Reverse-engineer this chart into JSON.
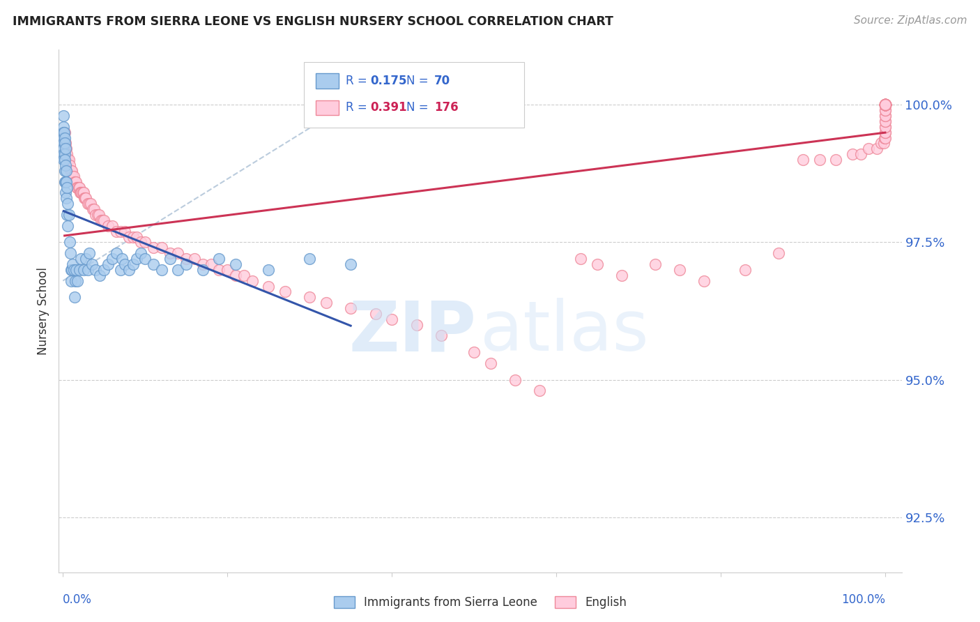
{
  "title": "IMMIGRANTS FROM SIERRA LEONE VS ENGLISH NURSERY SCHOOL CORRELATION CHART",
  "source": "Source: ZipAtlas.com",
  "ylabel": "Nursery School",
  "yticks": [
    92.5,
    95.0,
    97.5,
    100.0
  ],
  "ytick_labels": [
    "92.5%",
    "95.0%",
    "97.5%",
    "100.0%"
  ],
  "ymin": 91.5,
  "ymax": 101.0,
  "xmin": -0.005,
  "xmax": 1.02,
  "legend_blue_r": "0.175",
  "legend_blue_n": "70",
  "legend_pink_r": "0.391",
  "legend_pink_n": "176",
  "blue_edge": "#6699cc",
  "blue_face": "#aaccee",
  "pink_edge": "#ee8899",
  "pink_face": "#ffccdd",
  "trendline_blue": "#3355aa",
  "trendline_pink": "#cc3355",
  "trendline_dashed": "#bbccdd",
  "background": "#ffffff",
  "grid_color": "#cccccc",
  "axis_label_color": "#3366cc",
  "title_color": "#222222",
  "blue_scatter_x": [
    0.0008,
    0.0009,
    0.001,
    0.001,
    0.001,
    0.001,
    0.001,
    0.001,
    0.0015,
    0.002,
    0.002,
    0.002,
    0.002,
    0.002,
    0.002,
    0.003,
    0.003,
    0.003,
    0.003,
    0.004,
    0.004,
    0.004,
    0.005,
    0.005,
    0.006,
    0.006,
    0.007,
    0.008,
    0.009,
    0.01,
    0.01,
    0.011,
    0.012,
    0.013,
    0.014,
    0.015,
    0.016,
    0.018,
    0.02,
    0.022,
    0.025,
    0.028,
    0.03,
    0.032,
    0.035,
    0.04,
    0.045,
    0.05,
    0.055,
    0.06,
    0.065,
    0.07,
    0.072,
    0.075,
    0.08,
    0.085,
    0.09,
    0.095,
    0.1,
    0.11,
    0.12,
    0.13,
    0.14,
    0.15,
    0.17,
    0.19,
    0.21,
    0.25,
    0.3,
    0.35
  ],
  "blue_scatter_y": [
    99.8,
    99.6,
    99.5,
    99.4,
    99.3,
    99.2,
    99.1,
    99.0,
    99.5,
    99.4,
    99.3,
    99.1,
    99.0,
    98.8,
    98.6,
    99.2,
    98.9,
    98.6,
    98.4,
    98.8,
    98.6,
    98.3,
    98.5,
    98.0,
    98.2,
    97.8,
    98.0,
    97.5,
    97.3,
    97.0,
    96.8,
    97.0,
    97.1,
    97.0,
    96.5,
    96.8,
    97.0,
    96.8,
    97.0,
    97.2,
    97.0,
    97.2,
    97.0,
    97.3,
    97.1,
    97.0,
    96.9,
    97.0,
    97.1,
    97.2,
    97.3,
    97.0,
    97.2,
    97.1,
    97.0,
    97.1,
    97.2,
    97.3,
    97.2,
    97.1,
    97.0,
    97.2,
    97.0,
    97.1,
    97.0,
    97.2,
    97.1,
    97.0,
    97.2,
    97.1
  ],
  "pink_scatter_x": [
    0.002,
    0.003,
    0.004,
    0.005,
    0.006,
    0.007,
    0.008,
    0.009,
    0.01,
    0.011,
    0.012,
    0.013,
    0.014,
    0.015,
    0.016,
    0.017,
    0.018,
    0.019,
    0.02,
    0.021,
    0.022,
    0.023,
    0.024,
    0.025,
    0.026,
    0.027,
    0.028,
    0.03,
    0.032,
    0.034,
    0.036,
    0.038,
    0.04,
    0.042,
    0.044,
    0.046,
    0.048,
    0.05,
    0.055,
    0.06,
    0.065,
    0.07,
    0.075,
    0.08,
    0.085,
    0.09,
    0.095,
    0.1,
    0.11,
    0.12,
    0.13,
    0.14,
    0.15,
    0.16,
    0.17,
    0.18,
    0.19,
    0.2,
    0.21,
    0.22,
    0.23,
    0.25,
    0.27,
    0.3,
    0.32,
    0.35,
    0.38,
    0.4,
    0.43,
    0.46,
    0.5,
    0.52,
    0.55,
    0.58,
    0.63,
    0.65,
    0.68,
    0.72,
    0.75,
    0.78,
    0.83,
    0.87,
    0.9,
    0.92,
    0.94,
    0.96,
    0.97,
    0.98,
    0.99,
    0.995,
    0.998,
    0.999,
    1.0,
    1.0,
    1.0,
    1.0,
    1.0,
    1.0,
    1.0,
    1.0,
    1.0,
    1.0,
    1.0,
    1.0,
    1.0,
    1.0,
    1.0,
    1.0,
    1.0,
    1.0,
    1.0,
    1.0,
    1.0,
    1.0,
    1.0,
    1.0,
    1.0,
    1.0,
    1.0,
    1.0,
    1.0,
    1.0,
    1.0,
    1.0,
    1.0,
    1.0,
    1.0,
    1.0,
    1.0,
    1.0,
    1.0,
    1.0,
    1.0,
    1.0,
    1.0,
    1.0,
    1.0,
    1.0,
    1.0,
    1.0,
    1.0,
    1.0,
    1.0,
    1.0,
    1.0,
    1.0,
    1.0,
    1.0,
    1.0,
    1.0,
    1.0,
    1.0,
    1.0,
    1.0,
    1.0,
    1.0,
    1.0,
    1.0
  ],
  "pink_scatter_y": [
    99.5,
    99.3,
    99.2,
    99.1,
    99.0,
    99.0,
    98.9,
    98.8,
    98.8,
    98.8,
    98.7,
    98.7,
    98.6,
    98.6,
    98.6,
    98.5,
    98.5,
    98.5,
    98.5,
    98.4,
    98.4,
    98.4,
    98.4,
    98.4,
    98.3,
    98.3,
    98.3,
    98.2,
    98.2,
    98.2,
    98.1,
    98.1,
    98.0,
    98.0,
    98.0,
    97.9,
    97.9,
    97.9,
    97.8,
    97.8,
    97.7,
    97.7,
    97.7,
    97.6,
    97.6,
    97.6,
    97.5,
    97.5,
    97.4,
    97.4,
    97.3,
    97.3,
    97.2,
    97.2,
    97.1,
    97.1,
    97.0,
    97.0,
    96.9,
    96.9,
    96.8,
    96.7,
    96.6,
    96.5,
    96.4,
    96.3,
    96.2,
    96.1,
    96.0,
    95.8,
    95.5,
    95.3,
    95.0,
    94.8,
    97.2,
    97.1,
    96.9,
    97.1,
    97.0,
    96.8,
    97.0,
    97.3,
    99.0,
    99.0,
    99.0,
    99.1,
    99.1,
    99.2,
    99.2,
    99.3,
    99.3,
    99.4,
    99.4,
    99.5,
    99.5,
    99.6,
    99.6,
    99.7,
    99.7,
    99.8,
    99.8,
    99.9,
    99.9,
    100.0,
    100.0,
    100.0,
    100.0,
    100.0,
    100.0,
    100.0,
    100.0,
    100.0,
    100.0,
    100.0,
    100.0,
    100.0,
    100.0,
    100.0,
    100.0,
    100.0,
    100.0,
    100.0,
    100.0,
    100.0,
    100.0,
    100.0,
    100.0,
    100.0,
    100.0,
    100.0,
    100.0,
    100.0,
    100.0,
    100.0,
    100.0,
    100.0,
    100.0,
    100.0,
    100.0,
    100.0,
    100.0,
    100.0,
    100.0,
    100.0,
    100.0,
    100.0,
    100.0,
    100.0,
    100.0,
    100.0,
    100.0,
    100.0,
    100.0,
    100.0,
    100.0,
    100.0,
    100.0,
    100.0
  ]
}
